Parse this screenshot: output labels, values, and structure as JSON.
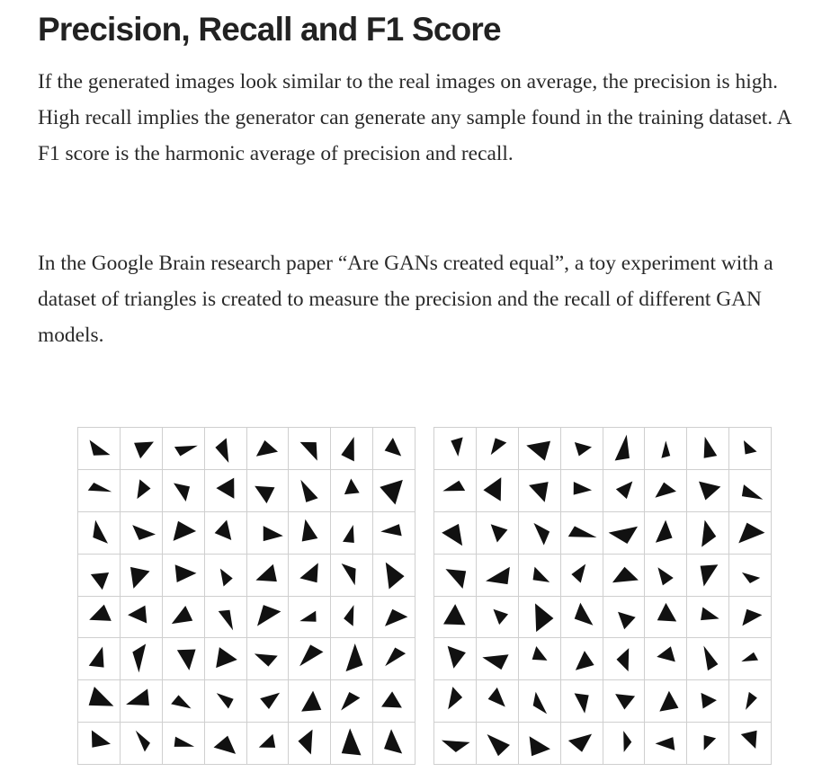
{
  "article": {
    "title": "Precision, Recall and F1 Score",
    "paragraphs": [
      "If the generated images look similar to the real images on average, the precision is high. High recall implies the generator can generate any sample found in the training dataset. A F1 score is the harmonic average of precision and recall.",
      "In the Google Brain research paper “Are GANs created equal”, a toy experiment with a dataset of triangles is created to measure the precision and the recall of different GAN models."
    ]
  },
  "figure": {
    "grids": [
      {
        "name": "left-grid",
        "rows": 8,
        "cols": 8
      },
      {
        "name": "right-grid",
        "rows": 8,
        "cols": 8
      }
    ],
    "colors": {
      "triangle": "#111111",
      "grid_line": "#cfcfcf"
    }
  }
}
